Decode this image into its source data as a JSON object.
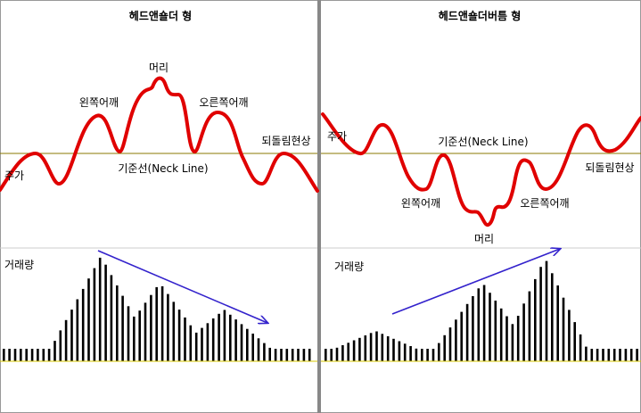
{
  "colors": {
    "price_line": "#e00000",
    "neckline": "#8a7a00",
    "bars": "#000000",
    "volume_baseline": "#d8c800",
    "trend_arrow": "#3322cc",
    "divider": "#888888",
    "separator": "#cccccc"
  },
  "left": {
    "title": "헤드앤숄더 형",
    "labels": {
      "head": "머리",
      "left_shoulder": "왼쪽어깨",
      "right_shoulder": "오른쪽어깨",
      "rebound": "되돌림현상",
      "price": "주가",
      "neckline": "기준선(Neck Line)",
      "volume": "거래량"
    },
    "volume_trend": "decreasing"
  },
  "right": {
    "title": "헤드앤숄더버틈 형",
    "labels": {
      "head": "머리",
      "left_shoulder": "왼쪽어깨",
      "right_shoulder": "오른쪽어깨",
      "rebound": "되돌림현상",
      "price": "주가",
      "neckline": "기준선(Neck Line)",
      "volume": "거래량"
    },
    "volume_trend": "increasing"
  }
}
